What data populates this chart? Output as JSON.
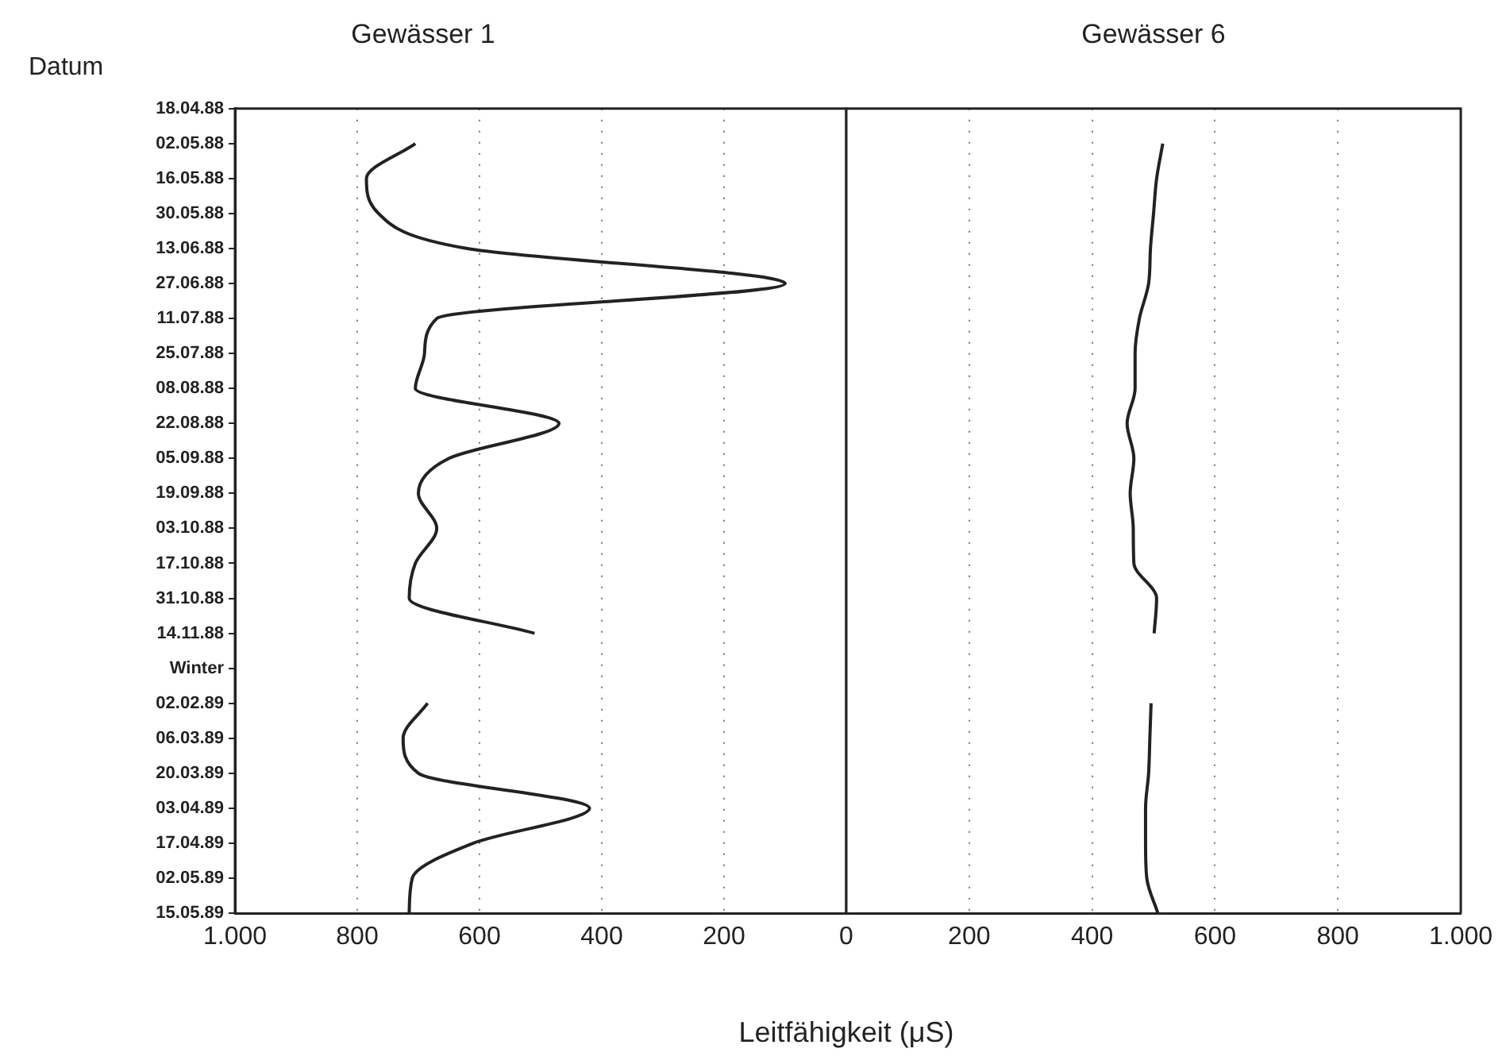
{
  "chart_data": [
    {
      "type": "line",
      "title": "Gewässer 1",
      "ylabel": "Datum",
      "orientation": "horizontal",
      "categories": [
        "18.04.88",
        "02.05.88",
        "16.05.88",
        "30.05.88",
        "13.06.88",
        "27.06.88",
        "11.07.88",
        "25.07.88",
        "08.08.88",
        "22.08.88",
        "05.09.88",
        "19.09.88",
        "03.10.88",
        "17.10.88",
        "31.10.88",
        "14.11.88",
        "Winter",
        "02.02.89",
        "06.03.89",
        "20.03.89",
        "03.04.89",
        "17.04.89",
        "02.05.89",
        "15.05.89"
      ],
      "series": [
        {
          "color": "#222222",
          "values": [
            null,
            705,
            785,
            765,
            620,
            100,
            670,
            690,
            705,
            470,
            650,
            700,
            670,
            705,
            715,
            510,
            null,
            685,
            725,
            700,
            420,
            610,
            710,
            715
          ]
        }
      ],
      "xlim": [
        1000,
        0
      ],
      "xticks": [
        {
          "value": 1000,
          "label": "1.000"
        },
        800,
        600,
        400,
        200
      ],
      "grid": "x",
      "line_style": "solid",
      "marker": "none"
    },
    {
      "type": "line",
      "title": "Gewässer 6",
      "xlabel": "Leitfähigkeit (μS)",
      "orientation": "horizontal",
      "categories": [
        null,
        null,
        null,
        null,
        null,
        null,
        null,
        null,
        null,
        null,
        null,
        null,
        null,
        null,
        null,
        null,
        null,
        null,
        null,
        null,
        null,
        null,
        null,
        null
      ],
      "series": [
        {
          "color": "#222222",
          "values": [
            null,
            515,
            505,
            500,
            495,
            492,
            477,
            470,
            470,
            457,
            468,
            462,
            467,
            468,
            505,
            501,
            null,
            496,
            494,
            492,
            487,
            487,
            489,
            507
          ]
        }
      ],
      "xlim": [
        0,
        1000
      ],
      "xticks": [
        0,
        200,
        400,
        600,
        800,
        {
          "value": 1000,
          "label": "1.000"
        }
      ],
      "grid": "x",
      "tick_labels": "x",
      "line_style": "solid",
      "marker": "none"
    }
  ]
}
